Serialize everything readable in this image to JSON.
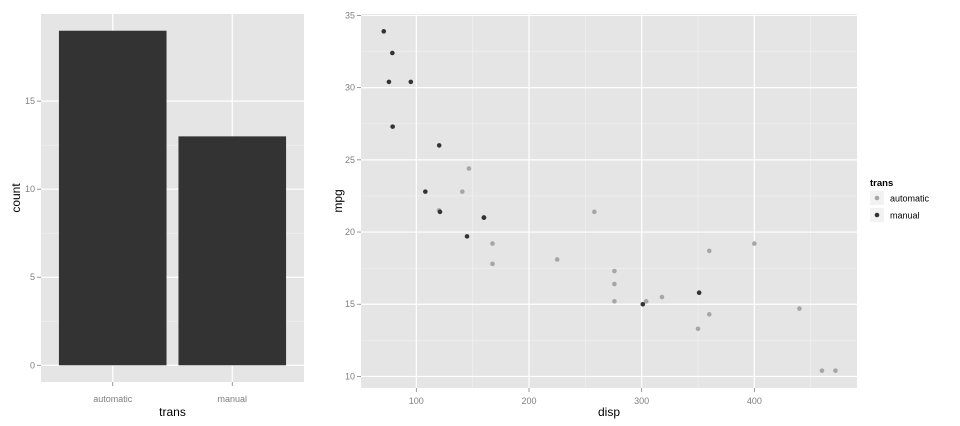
{
  "colors": {
    "panel_background": "#e5e5e5",
    "grid": "#ffffff",
    "bar_fill": "#333333",
    "automatic": "#a6a6a6",
    "manual": "#333333",
    "legend_key_background": "#f2f2f2"
  },
  "chart_data": [
    {
      "type": "bar",
      "title": "",
      "xlabel": "trans",
      "ylabel": "count",
      "categories": [
        "automatic",
        "manual"
      ],
      "values": [
        19,
        13
      ],
      "ylim": [
        -0.95,
        19.95
      ],
      "yticks": [
        0,
        5,
        10,
        15
      ],
      "ytick_labels": [
        "0",
        "5",
        "10",
        "15"
      ],
      "grid": true,
      "legend": "none"
    },
    {
      "type": "scatter",
      "title": "",
      "xlabel": "disp",
      "ylabel": "mpg",
      "xlim": [
        50.9,
        491.1
      ],
      "ylim": [
        9.2,
        35.1
      ],
      "xticks": [
        100,
        200,
        300,
        400
      ],
      "xtick_labels": [
        "100",
        "200",
        "300",
        "400"
      ],
      "yticks": [
        10,
        15,
        20,
        25,
        30,
        35
      ],
      "ytick_labels": [
        "10",
        "15",
        "20",
        "25",
        "30",
        "35"
      ],
      "grid": true,
      "legend": {
        "title": "trans",
        "placement": "right",
        "entries": [
          "automatic",
          "manual"
        ]
      },
      "series": [
        {
          "name": "automatic",
          "points": [
            [
              258,
              21.4
            ],
            [
              360,
              18.7
            ],
            [
              225,
              18.1
            ],
            [
              360,
              14.3
            ],
            [
              146.7,
              24.4
            ],
            [
              140.8,
              22.8
            ],
            [
              167.6,
              19.2
            ],
            [
              167.6,
              17.8
            ],
            [
              275.8,
              16.4
            ],
            [
              275.8,
              17.3
            ],
            [
              275.8,
              15.2
            ],
            [
              472,
              10.4
            ],
            [
              460,
              10.4
            ],
            [
              440,
              14.7
            ],
            [
              120.1,
              21.5
            ],
            [
              318,
              15.5
            ],
            [
              304,
              15.2
            ],
            [
              350,
              13.3
            ],
            [
              400,
              19.2
            ]
          ]
        },
        {
          "name": "manual",
          "points": [
            [
              160,
              21.0
            ],
            [
              160,
              21.0
            ],
            [
              108,
              22.8
            ],
            [
              78.7,
              32.4
            ],
            [
              75.7,
              30.4
            ],
            [
              71.1,
              33.9
            ],
            [
              79,
              27.3
            ],
            [
              120.3,
              26.0
            ],
            [
              95.1,
              30.4
            ],
            [
              351,
              15.8
            ],
            [
              145,
              19.7
            ],
            [
              301,
              15.0
            ],
            [
              121,
              21.4
            ]
          ]
        }
      ]
    }
  ]
}
